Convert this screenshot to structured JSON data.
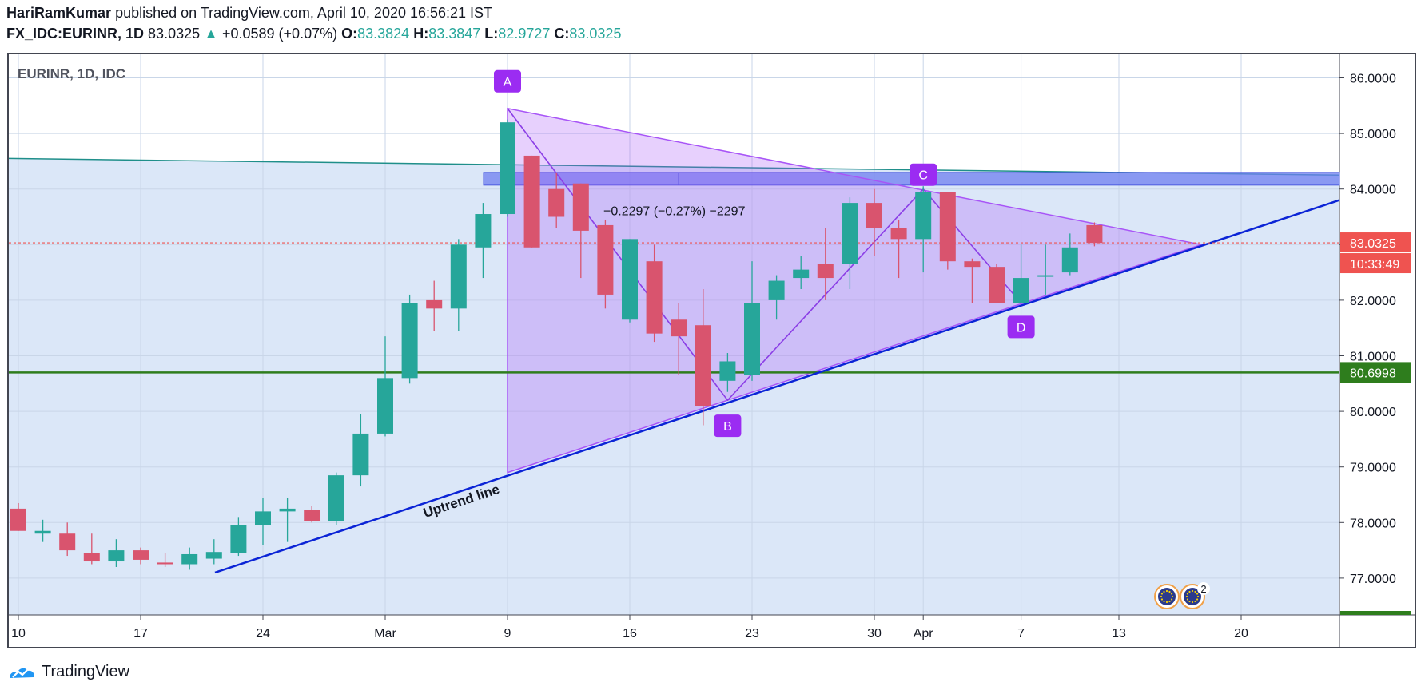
{
  "header": {
    "author": "HariRamKumar",
    "published": "published on TradingView.com, April 10, 2020 16:56:21 IST",
    "symbol": "FX_IDC:EURINR, 1D",
    "last": "83.0325",
    "arrow": "▲",
    "change": "+0.0589 (+0.07%)",
    "o_label": "O:",
    "o": "83.3824",
    "h_label": "H:",
    "h": "83.3847",
    "l_label": "L:",
    "l": "82.9727",
    "c_label": "C:",
    "c": "83.0325"
  },
  "brand": "TradingView",
  "colors": {
    "up": "#26a69a",
    "down": "#d9546e",
    "bg_zone": "#dbe7f8",
    "triangle": "#a855f7",
    "trend": "#0b24d6",
    "support": "#2e7d1d",
    "resistance_zone": "#6f7ff0",
    "last_price": "#ef5350",
    "badge": "#9b2cf2"
  },
  "chart_data": {
    "type": "candlestick",
    "title": "EURINR, 1D, IDC",
    "ylim": [
      76.3,
      86.4
    ],
    "yticks": [
      "77.0000",
      "78.0000",
      "79.0000",
      "80.0000",
      "81.0000",
      "82.0000",
      "83.0000",
      "84.0000",
      "85.0000",
      "86.0000"
    ],
    "xticks": [
      {
        "i": 0,
        "label": "10"
      },
      {
        "i": 5,
        "label": "17"
      },
      {
        "i": 10,
        "label": "24"
      },
      {
        "i": 15,
        "label": "Mar"
      },
      {
        "i": 20,
        "label": "9"
      },
      {
        "i": 25,
        "label": "16"
      },
      {
        "i": 30,
        "label": "23"
      },
      {
        "i": 35,
        "label": "30"
      },
      {
        "i": 37,
        "label": "Apr"
      },
      {
        "i": 41,
        "label": "7"
      },
      {
        "i": 45,
        "label": "13"
      },
      {
        "i": 50,
        "label": "20"
      }
    ],
    "candles": [
      {
        "o": 78.25,
        "h": 78.35,
        "l": 77.85,
        "c": 77.85
      },
      {
        "o": 77.8,
        "h": 78.05,
        "l": 77.65,
        "c": 77.85
      },
      {
        "o": 77.8,
        "h": 78.0,
        "l": 77.4,
        "c": 77.5
      },
      {
        "o": 77.45,
        "h": 77.8,
        "l": 77.25,
        "c": 77.3
      },
      {
        "o": 77.3,
        "h": 77.7,
        "l": 77.2,
        "c": 77.5
      },
      {
        "o": 77.5,
        "h": 77.55,
        "l": 77.25,
        "c": 77.33
      },
      {
        "o": 77.28,
        "h": 77.45,
        "l": 77.2,
        "c": 77.25
      },
      {
        "o": 77.25,
        "h": 77.55,
        "l": 77.15,
        "c": 77.43
      },
      {
        "o": 77.35,
        "h": 77.7,
        "l": 77.25,
        "c": 77.47
      },
      {
        "o": 77.45,
        "h": 78.1,
        "l": 77.4,
        "c": 77.95
      },
      {
        "o": 77.95,
        "h": 78.45,
        "l": 77.6,
        "c": 78.2
      },
      {
        "o": 78.2,
        "h": 78.45,
        "l": 77.65,
        "c": 78.25
      },
      {
        "o": 78.22,
        "h": 78.3,
        "l": 78.0,
        "c": 78.02
      },
      {
        "o": 78.02,
        "h": 78.9,
        "l": 77.95,
        "c": 78.85
      },
      {
        "o": 78.85,
        "h": 79.95,
        "l": 78.65,
        "c": 79.6
      },
      {
        "o": 79.6,
        "h": 81.35,
        "l": 79.55,
        "c": 80.6
      },
      {
        "o": 80.6,
        "h": 82.1,
        "l": 80.5,
        "c": 81.95
      },
      {
        "o": 82.0,
        "h": 82.35,
        "l": 81.45,
        "c": 81.85
      },
      {
        "o": 81.85,
        "h": 83.1,
        "l": 81.45,
        "c": 83.0
      },
      {
        "o": 82.95,
        "h": 83.75,
        "l": 82.4,
        "c": 83.55
      },
      {
        "o": 83.55,
        "h": 85.25,
        "l": 83.5,
        "c": 85.2
      },
      {
        "o": 84.6,
        "h": 84.6,
        "l": 82.95,
        "c": 82.95
      },
      {
        "o": 84.0,
        "h": 84.3,
        "l": 83.3,
        "c": 83.5
      },
      {
        "o": 84.1,
        "h": 84.1,
        "l": 82.4,
        "c": 83.25
      },
      {
        "o": 83.35,
        "h": 83.45,
        "l": 81.85,
        "c": 82.1
      },
      {
        "o": 81.65,
        "h": 83.1,
        "l": 81.6,
        "c": 83.1
      },
      {
        "o": 82.7,
        "h": 83.0,
        "l": 81.25,
        "c": 81.4
      },
      {
        "o": 81.65,
        "h": 81.95,
        "l": 80.65,
        "c": 81.35
      },
      {
        "o": 81.55,
        "h": 82.2,
        "l": 79.75,
        "c": 80.1
      },
      {
        "o": 80.55,
        "h": 81.05,
        "l": 80.35,
        "c": 80.9
      },
      {
        "o": 80.65,
        "h": 82.7,
        "l": 80.55,
        "c": 81.95
      },
      {
        "o": 82.0,
        "h": 82.45,
        "l": 81.65,
        "c": 82.35
      },
      {
        "o": 82.4,
        "h": 82.8,
        "l": 82.2,
        "c": 82.55
      },
      {
        "o": 82.65,
        "h": 83.3,
        "l": 82.0,
        "c": 82.4
      },
      {
        "o": 82.65,
        "h": 83.85,
        "l": 82.2,
        "c": 83.75
      },
      {
        "o": 83.75,
        "h": 84.0,
        "l": 82.8,
        "c": 83.3
      },
      {
        "o": 83.3,
        "h": 83.45,
        "l": 82.4,
        "c": 83.1
      },
      {
        "o": 83.1,
        "h": 84.05,
        "l": 82.5,
        "c": 83.95
      },
      {
        "o": 83.95,
        "h": 83.95,
        "l": 82.55,
        "c": 82.7
      },
      {
        "o": 82.7,
        "h": 82.75,
        "l": 81.95,
        "c": 82.6
      },
      {
        "o": 82.6,
        "h": 82.65,
        "l": 81.95,
        "c": 81.95
      },
      {
        "o": 81.95,
        "h": 83.0,
        "l": 81.95,
        "c": 82.4
      },
      {
        "o": 82.45,
        "h": 83.0,
        "l": 82.1,
        "c": 82.45
      },
      {
        "o": 82.5,
        "h": 83.2,
        "l": 82.45,
        "c": 82.95
      },
      {
        "o": 83.35,
        "h": 83.4,
        "l": 82.97,
        "c": 83.03
      }
    ],
    "support_level": 80.6998,
    "last_price": 83.0325,
    "last_price_label": "83.0325",
    "countdown": "10:33:49",
    "support_label": "80.6998",
    "measure_text": "−0.2297 (−0.27%) −2297",
    "uptrend_label": "Uptrend line",
    "points": [
      {
        "label": "A",
        "i": 20,
        "y": 85.45
      },
      {
        "label": "B",
        "i": 29,
        "y": 80.2
      },
      {
        "label": "C",
        "i": 37,
        "y": 84.0
      },
      {
        "label": "D",
        "i": 41,
        "y": 81.95
      }
    ],
    "event_badge_count": "2"
  }
}
